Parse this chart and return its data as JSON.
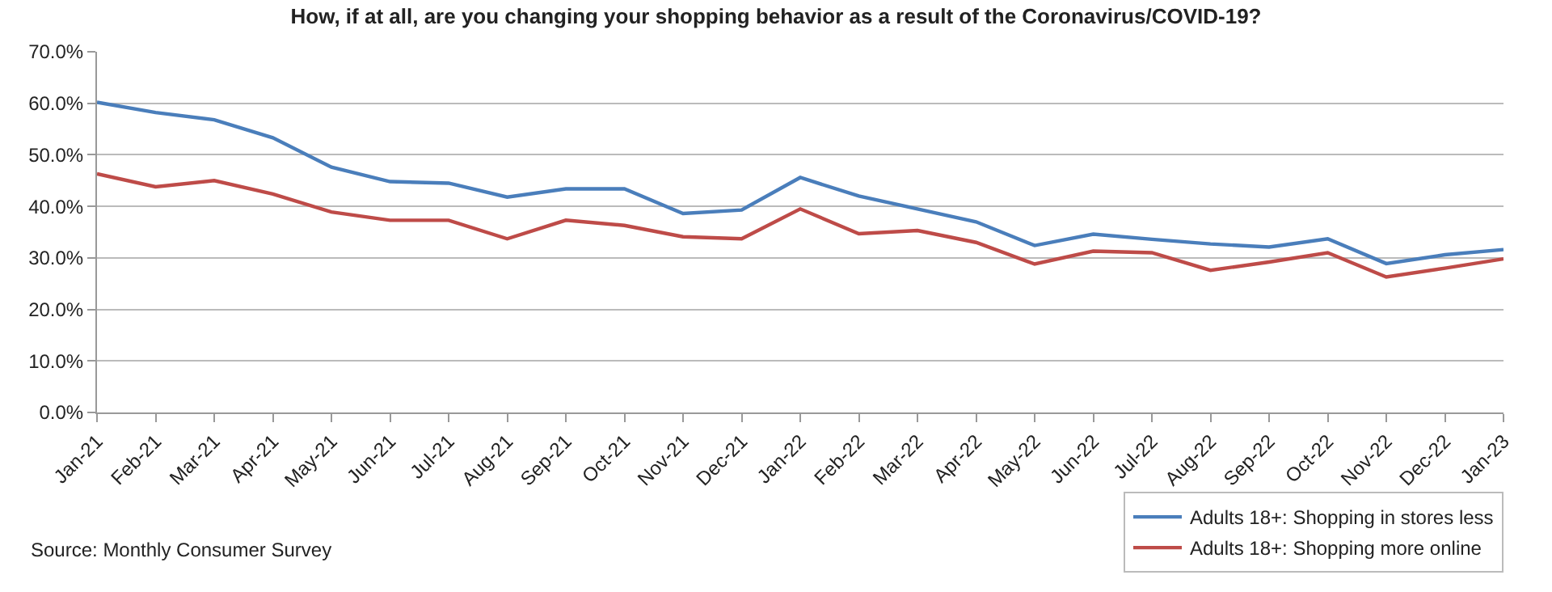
{
  "chart_data": {
    "type": "line",
    "title": "How, if at all, are you changing your shopping behavior as a result of the Coronavirus/COVID-19?",
    "categories": [
      "Jan-21",
      "Feb-21",
      "Mar-21",
      "Apr-21",
      "May-21",
      "Jun-21",
      "Jul-21",
      "Aug-21",
      "Sep-21",
      "Oct-21",
      "Nov-21",
      "Dec-21",
      "Jan-22",
      "Feb-22",
      "Mar-22",
      "Apr-22",
      "May-22",
      "Jun-22",
      "Jul-22",
      "Aug-22",
      "Sep-22",
      "Oct-22",
      "Nov-22",
      "Dec-22",
      "Jan-23"
    ],
    "series": [
      {
        "name": "Adults 18+: Shopping in stores less",
        "color": "#4a7ebb",
        "values": [
          60.2,
          58.2,
          56.8,
          53.3,
          47.6,
          44.8,
          44.5,
          41.8,
          43.4,
          43.4,
          38.6,
          39.3,
          45.6,
          42.0,
          39.5,
          37.0,
          32.4,
          34.6,
          33.6,
          32.7,
          32.1,
          33.7,
          28.9,
          30.6,
          31.6
        ]
      },
      {
        "name": "Adults 18+: Shopping more online",
        "color": "#be4b48",
        "values": [
          46.3,
          43.8,
          45.0,
          42.4,
          38.9,
          37.3,
          37.3,
          33.7,
          37.3,
          36.3,
          34.1,
          33.7,
          39.5,
          34.7,
          35.3,
          33.0,
          28.8,
          31.3,
          31.0,
          27.6,
          29.2,
          31.0,
          26.3,
          28.0,
          29.8
        ]
      }
    ],
    "ylim": [
      0,
      70
    ],
    "yticks": [
      {
        "value": 0,
        "label": "0.0%"
      },
      {
        "value": 10,
        "label": "10.0%"
      },
      {
        "value": 20,
        "label": "20.0%"
      },
      {
        "value": 30,
        "label": "30.0%"
      },
      {
        "value": 40,
        "label": "40.0%"
      },
      {
        "value": 50,
        "label": "50.0%"
      },
      {
        "value": 60,
        "label": "60.0%"
      },
      {
        "value": 70,
        "label": "70.0%"
      }
    ],
    "grid": "y",
    "legend": "bottom right",
    "marker": "none",
    "line_style": "solid",
    "annotations": [
      "Source: Monthly Consumer Survey"
    ]
  }
}
